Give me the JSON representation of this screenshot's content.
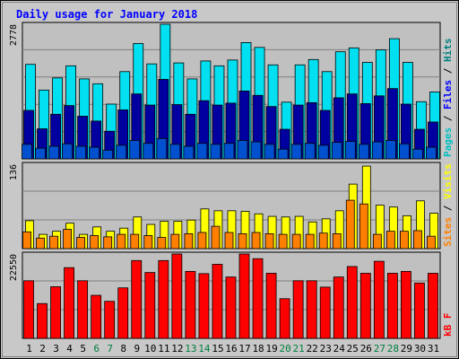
{
  "chart_data": [
    {
      "type": "bar",
      "title": "Daily usage for January 2018",
      "panel": "hits",
      "ymax_label": "2778",
      "ylim": [
        0,
        2778
      ],
      "side_label": {
        "parts": [
          [
            "Pages",
            "#00c0c0"
          ],
          [
            " / ",
            "#000000"
          ],
          [
            "Files",
            "#0000ff"
          ],
          [
            " / ",
            "#000000"
          ],
          [
            "Hits",
            "#008080"
          ]
        ]
      },
      "series": [
        {
          "name": "Hits",
          "color": "#00e0f0",
          "values": [
            1950,
            1420,
            1670,
            1920,
            1650,
            1550,
            1130,
            1800,
            2380,
            1960,
            2778,
            1980,
            1650,
            2020,
            1920,
            2040,
            2400,
            2300,
            1940,
            1170,
            1940,
            2050,
            1800,
            2210,
            2290,
            1990,
            2250,
            2480,
            1990,
            1180,
            1380
          ]
        },
        {
          "name": "Files",
          "color": "#0000a0",
          "values": [
            1000,
            620,
            920,
            1100,
            880,
            780,
            570,
            1010,
            1340,
            1110,
            1640,
            1120,
            920,
            1200,
            1110,
            1150,
            1400,
            1310,
            1080,
            610,
            1110,
            1160,
            1000,
            1260,
            1340,
            1140,
            1300,
            1450,
            1130,
            610,
            760
          ]
        },
        {
          "name": "Pages",
          "color": "#0050d0",
          "values": [
            300,
            220,
            260,
            310,
            260,
            240,
            180,
            280,
            380,
            320,
            420,
            300,
            260,
            320,
            300,
            320,
            380,
            350,
            300,
            200,
            300,
            320,
            280,
            340,
            360,
            300,
            350,
            380,
            310,
            200,
            240
          ]
        }
      ]
    },
    {
      "type": "bar",
      "panel": "visits",
      "ymax_label": "136",
      "ylim": [
        0,
        136
      ],
      "side_label": {
        "parts": [
          [
            "Sites",
            "#ff8000"
          ],
          [
            " / ",
            "#000000"
          ],
          [
            "Visits",
            "#ffff00"
          ]
        ]
      },
      "series": [
        {
          "name": "Visits",
          "color": "#ffff00",
          "values": [
            45,
            23,
            28,
            41,
            23,
            35,
            28,
            33,
            51,
            39,
            44,
            44,
            46,
            64,
            61,
            61,
            60,
            56,
            52,
            51,
            52,
            43,
            48,
            61,
            104,
            133,
            70,
            67,
            53,
            77,
            57
          ]
        },
        {
          "name": "Sites",
          "color": "#ff8000",
          "values": [
            27,
            17,
            20,
            31,
            18,
            21,
            19,
            23,
            23,
            21,
            18,
            23,
            24,
            26,
            36,
            26,
            24,
            26,
            24,
            23,
            23,
            23,
            25,
            24,
            78,
            72,
            23,
            28,
            28,
            29,
            20
          ]
        }
      ]
    },
    {
      "type": "bar",
      "panel": "kbytes",
      "ymax_label": "22550",
      "ylim": [
        0,
        22550
      ],
      "side_label": {
        "parts": [
          [
            "kB F",
            "#ff0000"
          ]
        ]
      },
      "series": [
        {
          "name": "kB F",
          "color": "#ff0000",
          "values": [
            15400,
            9300,
            13800,
            18900,
            15400,
            11500,
            9900,
            13500,
            20800,
            17600,
            20800,
            22550,
            17900,
            17300,
            19800,
            16400,
            22550,
            21300,
            17400,
            10600,
            15400,
            15400,
            13700,
            16400,
            19200,
            17400,
            20600,
            17400,
            17900,
            14800,
            17400
          ]
        }
      ]
    }
  ],
  "days": [
    "1",
    "2",
    "3",
    "4",
    "5",
    "6",
    "7",
    "8",
    "9",
    "10",
    "11",
    "12",
    "13",
    "14",
    "15",
    "16",
    "17",
    "18",
    "19",
    "20",
    "21",
    "22",
    "23",
    "24",
    "25",
    "26",
    "27",
    "28",
    "29",
    "30",
    "31"
  ],
  "weekend_color": "#008040",
  "weekday_color": "#000000",
  "weekend_days": [
    6,
    7,
    13,
    14,
    20,
    21,
    27,
    28
  ]
}
